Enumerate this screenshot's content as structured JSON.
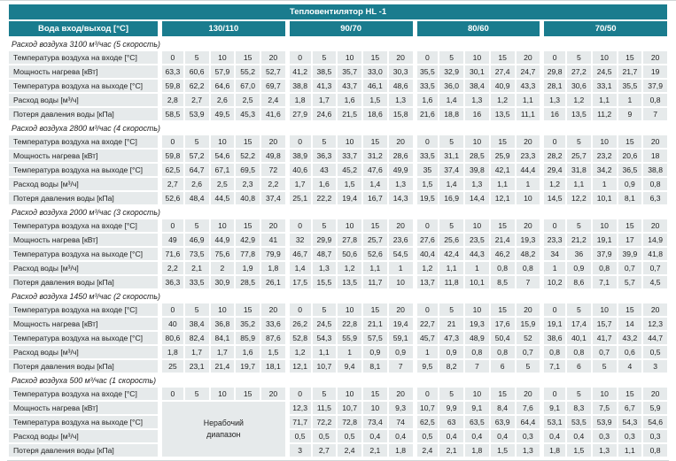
{
  "title": "Тепловентилятор HL -1",
  "water_header": "Вода вход/выход [°C]",
  "temp_groups": [
    "130/110",
    "90/70",
    "80/60",
    "70/50"
  ],
  "inlet_temps": [
    "0",
    "5",
    "10",
    "15",
    "20"
  ],
  "row_labels": {
    "inlet": "Температура воздуха на входе [°C]",
    "power": "Мощность нагрева [кВт]",
    "outlet": "Температура воздуха на выходе [°C]",
    "water": "Расход воды [м³/ч]",
    "pressure": "Потеря давления воды [кПа]"
  },
  "non_working_range": [
    "Нерабочий",
    "диапазон"
  ],
  "colors": {
    "header_teal": "#1a7c8e",
    "cell_bg": "#e6eaeb"
  },
  "sections": [
    {
      "label": "Расход воздуха 3100 м³/час (5 скорость)",
      "power": [
        [
          "63,3",
          "60,6",
          "57,9",
          "55,2",
          "52,7"
        ],
        [
          "41,2",
          "38,5",
          "35,7",
          "33,0",
          "30,3"
        ],
        [
          "35,5",
          "32,9",
          "30,1",
          "27,4",
          "24,7"
        ],
        [
          "29,8",
          "27,2",
          "24,5",
          "21,7",
          "19"
        ]
      ],
      "outlet": [
        [
          "59,8",
          "62,2",
          "64,6",
          "67,0",
          "69,7"
        ],
        [
          "38,8",
          "41,3",
          "43,7",
          "46,1",
          "48,6"
        ],
        [
          "33,5",
          "36,0",
          "38,4",
          "40,9",
          "43,3"
        ],
        [
          "28,1",
          "30,6",
          "33,1",
          "35,5",
          "37,9"
        ]
      ],
      "water": [
        [
          "2,8",
          "2,7",
          "2,6",
          "2,5",
          "2,4"
        ],
        [
          "1,8",
          "1,7",
          "1,6",
          "1,5",
          "1,3"
        ],
        [
          "1,6",
          "1,4",
          "1,3",
          "1,2",
          "1,1"
        ],
        [
          "1,3",
          "1,2",
          "1,1",
          "1",
          "0,8"
        ]
      ],
      "pressure": [
        [
          "58,5",
          "53,9",
          "49,5",
          "45,3",
          "41,6"
        ],
        [
          "27,9",
          "24,6",
          "21,5",
          "18,6",
          "15,8"
        ],
        [
          "21,6",
          "18,8",
          "16",
          "13,5",
          "11,1"
        ],
        [
          "16",
          "13,5",
          "11,2",
          "9",
          "7"
        ]
      ]
    },
    {
      "label": "Расход воздуха 2800 м³/час (4 скорость)",
      "power": [
        [
          "59,8",
          "57,2",
          "54,6",
          "52,2",
          "49,8"
        ],
        [
          "38,9",
          "36,3",
          "33,7",
          "31,2",
          "28,6"
        ],
        [
          "33,5",
          "31,1",
          "28,5",
          "25,9",
          "23,3"
        ],
        [
          "28,2",
          "25,7",
          "23,2",
          "20,6",
          "18"
        ]
      ],
      "outlet": [
        [
          "62,5",
          "64,7",
          "67,1",
          "69,5",
          "72"
        ],
        [
          "40,6",
          "43",
          "45,2",
          "47,6",
          "49,9"
        ],
        [
          "35",
          "37,4",
          "39,8",
          "42,1",
          "44,4"
        ],
        [
          "29,4",
          "31,8",
          "34,2",
          "36,5",
          "38,8"
        ]
      ],
      "water": [
        [
          "2,7",
          "2,6",
          "2,5",
          "2,3",
          "2,2"
        ],
        [
          "1,7",
          "1,6",
          "1,5",
          "1,4",
          "1,3"
        ],
        [
          "1,5",
          "1,4",
          "1,3",
          "1,1",
          "1"
        ],
        [
          "1,2",
          "1,1",
          "1",
          "0,9",
          "0,8"
        ]
      ],
      "pressure": [
        [
          "52,6",
          "48,4",
          "44,5",
          "40,8",
          "37,4"
        ],
        [
          "25,1",
          "22,2",
          "19,4",
          "16,7",
          "14,3"
        ],
        [
          "19,5",
          "16,9",
          "14,4",
          "12,1",
          "10"
        ],
        [
          "14,5",
          "12,2",
          "10,1",
          "8,1",
          "6,3"
        ]
      ]
    },
    {
      "label": "Расход воздуха 2000 м³/час (3 скорость)",
      "power": [
        [
          "49",
          "46,9",
          "44,9",
          "42,9",
          "41"
        ],
        [
          "32",
          "29,9",
          "27,8",
          "25,7",
          "23,6"
        ],
        [
          "27,6",
          "25,6",
          "23,5",
          "21,4",
          "19,3"
        ],
        [
          "23,3",
          "21,2",
          "19,1",
          "17",
          "14,9"
        ]
      ],
      "outlet": [
        [
          "71,6",
          "73,5",
          "75,6",
          "77,8",
          "79,9"
        ],
        [
          "46,7",
          "48,7",
          "50,6",
          "52,6",
          "54,5"
        ],
        [
          "40,4",
          "42,4",
          "44,3",
          "46,2",
          "48,2"
        ],
        [
          "34",
          "36",
          "37,9",
          "39,9",
          "41,8"
        ]
      ],
      "water": [
        [
          "2,2",
          "2,1",
          "2",
          "1,9",
          "1,8"
        ],
        [
          "1,4",
          "1,3",
          "1,2",
          "1,1",
          "1"
        ],
        [
          "1,2",
          "1,1",
          "1",
          "0,8",
          "0,8"
        ],
        [
          "1",
          "0,9",
          "0,8",
          "0,7",
          "0,7"
        ]
      ],
      "pressure": [
        [
          "36,3",
          "33,5",
          "30,9",
          "28,5",
          "26,1"
        ],
        [
          "17,5",
          "15,5",
          "13,5",
          "11,7",
          "10"
        ],
        [
          "13,7",
          "11,8",
          "10,1",
          "8,5",
          "7"
        ],
        [
          "10,2",
          "8,6",
          "7,1",
          "5,7",
          "4,5"
        ]
      ]
    },
    {
      "label": "Расход воздуха 1450 м³/час (2 скорость)",
      "power": [
        [
          "40",
          "38,4",
          "36,8",
          "35,2",
          "33,6"
        ],
        [
          "26,2",
          "24,5",
          "22,8",
          "21,1",
          "19,4"
        ],
        [
          "22,7",
          "21",
          "19,3",
          "17,6",
          "15,9"
        ],
        [
          "19,1",
          "17,4",
          "15,7",
          "14",
          "12,3"
        ]
      ],
      "outlet": [
        [
          "80,6",
          "82,4",
          "84,1",
          "85,9",
          "87,6"
        ],
        [
          "52,8",
          "54,3",
          "55,9",
          "57,5",
          "59,1"
        ],
        [
          "45,7",
          "47,3",
          "48,9",
          "50,4",
          "52"
        ],
        [
          "38,6",
          "40,1",
          "41,7",
          "43,2",
          "44,7"
        ]
      ],
      "water": [
        [
          "1,8",
          "1,7",
          "1,7",
          "1,6",
          "1,5"
        ],
        [
          "1,2",
          "1,1",
          "1",
          "0,9",
          "0,9"
        ],
        [
          "1",
          "0,9",
          "0,8",
          "0,8",
          "0,7"
        ],
        [
          "0,8",
          "0,8",
          "0,7",
          "0,6",
          "0,5"
        ]
      ],
      "pressure": [
        [
          "25",
          "23,1",
          "21,4",
          "19,7",
          "18,1"
        ],
        [
          "12,1",
          "10,7",
          "9,4",
          "8,1",
          "7"
        ],
        [
          "9,5",
          "8,2",
          "7",
          "6",
          "5"
        ],
        [
          "7,1",
          "6",
          "5",
          "4",
          "3"
        ]
      ]
    },
    {
      "label": "Расход воздуха 500 м³/час (1 скорость)",
      "non_working": true,
      "power": [
        null,
        [
          "12,3",
          "11,5",
          "10,7",
          "10",
          "9,3"
        ],
        [
          "10,7",
          "9,9",
          "9,1",
          "8,4",
          "7,6"
        ],
        [
          "9,1",
          "8,3",
          "7,5",
          "6,7",
          "5,9"
        ]
      ],
      "outlet": [
        null,
        [
          "71,7",
          "72,2",
          "72,8",
          "73,4",
          "74"
        ],
        [
          "62,5",
          "63",
          "63,5",
          "63,9",
          "64,4"
        ],
        [
          "53,1",
          "53,5",
          "53,9",
          "54,3",
          "54,6"
        ]
      ],
      "water": [
        null,
        [
          "0,5",
          "0,5",
          "0,5",
          "0,4",
          "0,4"
        ],
        [
          "0,5",
          "0,4",
          "0,4",
          "0,4",
          "0,3"
        ],
        [
          "0,4",
          "0,4",
          "0,3",
          "0,3",
          "0,3"
        ]
      ],
      "pressure": [
        null,
        [
          "3",
          "2,7",
          "2,4",
          "2,1",
          "1,8"
        ],
        [
          "2,4",
          "2,1",
          "1,8",
          "1,5",
          "1,3"
        ],
        [
          "1,8",
          "1,5",
          "1,3",
          "1,1",
          "0,8"
        ]
      ]
    }
  ]
}
